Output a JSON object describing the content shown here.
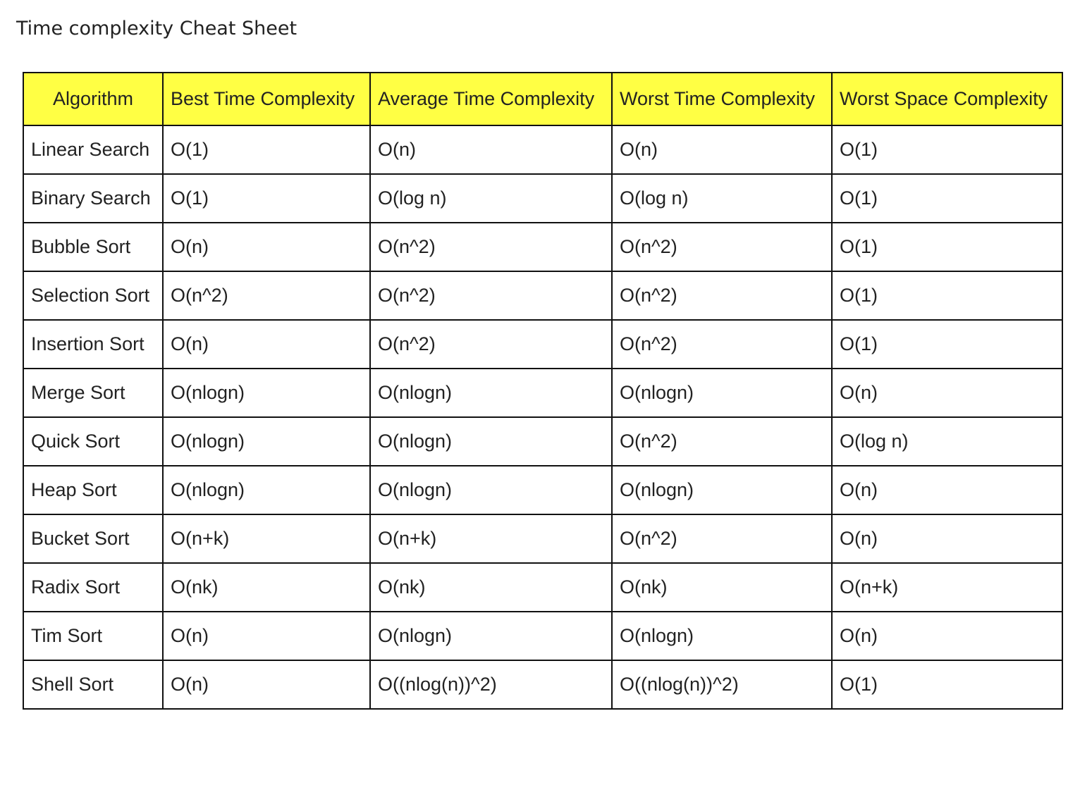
{
  "page": {
    "title": "Time complexity Cheat Sheet"
  },
  "table": {
    "header_color": "#ffff44",
    "columns": [
      "Algorithm",
      "Best Time Complexity",
      "Average Time Complexity",
      "Worst Time Complexity",
      "Worst Space Complexity"
    ],
    "rows": [
      [
        "Linear Search",
        "O(1)",
        "O(n)",
        "O(n)",
        "O(1)"
      ],
      [
        "Binary Search",
        "O(1)",
        "O(log n)",
        "O(log n)",
        "O(1)"
      ],
      [
        "Bubble Sort",
        "O(n)",
        "O(n^2)",
        "O(n^2)",
        "O(1)"
      ],
      [
        "Selection Sort",
        "O(n^2)",
        "O(n^2)",
        "O(n^2)",
        "O(1)"
      ],
      [
        "Insertion Sort",
        "O(n)",
        "O(n^2)",
        "O(n^2)",
        "O(1)"
      ],
      [
        "Merge Sort",
        "O(nlogn)",
        "O(nlogn)",
        "O(nlogn)",
        "O(n)"
      ],
      [
        "Quick Sort",
        "O(nlogn)",
        "O(nlogn)",
        "O(n^2)",
        "O(log n)"
      ],
      [
        "Heap Sort",
        "O(nlogn)",
        "O(nlogn)",
        "O(nlogn)",
        "O(n)"
      ],
      [
        "Bucket Sort",
        "O(n+k)",
        "O(n+k)",
        "O(n^2)",
        "O(n)"
      ],
      [
        "Radix Sort",
        "O(nk)",
        "O(nk)",
        "O(nk)",
        "O(n+k)"
      ],
      [
        "Tim Sort",
        "O(n)",
        "O(nlogn)",
        "O(nlogn)",
        "O(n)"
      ],
      [
        "Shell Sort",
        "O(n)",
        "O((nlog(n))^2)",
        "O((nlog(n))^2)",
        "O(1)"
      ]
    ]
  }
}
